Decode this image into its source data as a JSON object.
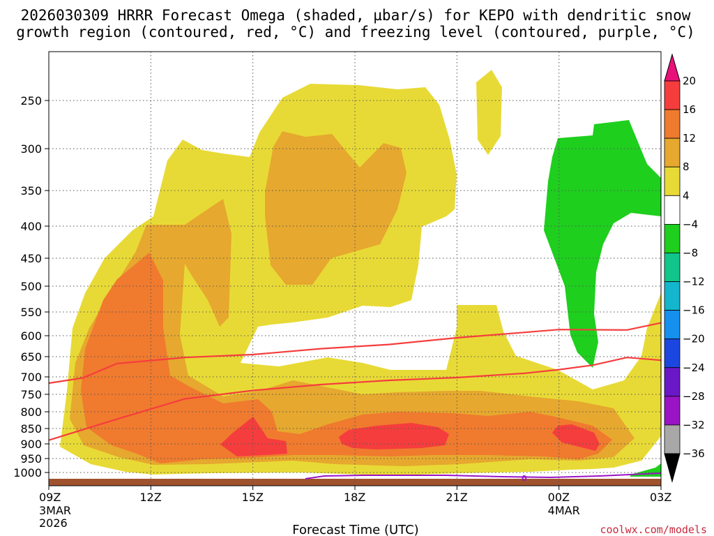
{
  "chart_data": {
    "type": "contour-cross-section",
    "title_line1": "2026030309 HRRR Forecast Omega (shaded, µbar/s) for KEPO with dendritic snow",
    "title_line2": "growth region (contoured, red, °C) and freezing level (contoured, purple, °C)",
    "xlabel": "Forecast Time (UTC)",
    "ylabel": "",
    "credit": "coolwx.com/models",
    "x_ticks": [
      {
        "label": "09Z",
        "sub1": "3MAR",
        "sub2": "2026",
        "hour": 0
      },
      {
        "label": "12Z",
        "sub1": "",
        "sub2": "",
        "hour": 3
      },
      {
        "label": "15Z",
        "sub1": "",
        "sub2": "",
        "hour": 6
      },
      {
        "label": "18Z",
        "sub1": "",
        "sub2": "",
        "hour": 9
      },
      {
        "label": "21Z",
        "sub1": "",
        "sub2": "",
        "hour": 12
      },
      {
        "label": "00Z",
        "sub1": "4MAR",
        "sub2": "",
        "hour": 15
      },
      {
        "label": "03Z",
        "sub1": "",
        "sub2": "",
        "hour": 18
      }
    ],
    "y_ticks": [
      "250",
      "300",
      "350",
      "400",
      "450",
      "500",
      "550",
      "600",
      "650",
      "700",
      "750",
      "800",
      "850",
      "900",
      "950",
      "1000"
    ],
    "colorbar": {
      "labels": [
        "20",
        "16",
        "12",
        "8",
        "4",
        "−4",
        "−8",
        "−12",
        "−16",
        "−20",
        "−24",
        "−28",
        "−32",
        "−36"
      ],
      "colors": [
        "#e8117a",
        "#f53d3d",
        "#f07a2e",
        "#e6a82e",
        "#e8da36",
        "#ffffff",
        "#1ecf1e",
        "#11c68a",
        "#13b6cc",
        "#1590ee",
        "#1c46e0",
        "#6a17c8",
        "#9a13c4",
        "#a8a8a8",
        "#000000"
      ]
    },
    "omega_levels": [
      {
        "name": "4 to 8",
        "color": "#e8da36"
      },
      {
        "name": "8 to 12",
        "color": "#e6a82e"
      },
      {
        "name": "12 to 16",
        "color": "#f07a2e"
      },
      {
        "name": "16 to 20",
        "color": "#f53d3d"
      },
      {
        "name": "-4 to -8",
        "color": "#1ecf1e"
      }
    ],
    "freezing_level_label": "0",
    "freezing_level_color": "#9a13c4",
    "dgz_color": "#f53d3d",
    "terrain_color": "#a0522d",
    "dgz_upper": [
      {
        "hour": 0.0,
        "p": 718
      },
      {
        "hour": 1.0,
        "p": 703
      },
      {
        "hour": 2.0,
        "p": 667
      },
      {
        "hour": 4.0,
        "p": 652
      },
      {
        "hour": 6.0,
        "p": 645
      },
      {
        "hour": 8.0,
        "p": 631
      },
      {
        "hour": 10.0,
        "p": 621
      },
      {
        "hour": 12.0,
        "p": 605
      },
      {
        "hour": 14.0,
        "p": 593
      },
      {
        "hour": 15.0,
        "p": 587
      },
      {
        "hour": 17.0,
        "p": 588
      },
      {
        "hour": 18.0,
        "p": 573
      }
    ],
    "dgz_lower": [
      {
        "hour": 0.0,
        "p": 888
      },
      {
        "hour": 2.0,
        "p": 822
      },
      {
        "hour": 4.0,
        "p": 763
      },
      {
        "hour": 6.0,
        "p": 739
      },
      {
        "hour": 8.0,
        "p": 722
      },
      {
        "hour": 10.0,
        "p": 710
      },
      {
        "hour": 12.0,
        "p": 702
      },
      {
        "hour": 14.0,
        "p": 691
      },
      {
        "hour": 15.0,
        "p": 682
      },
      {
        "hour": 16.0,
        "p": 671
      },
      {
        "hour": 17.0,
        "p": 652
      },
      {
        "hour": 18.0,
        "p": 659
      }
    ]
  }
}
